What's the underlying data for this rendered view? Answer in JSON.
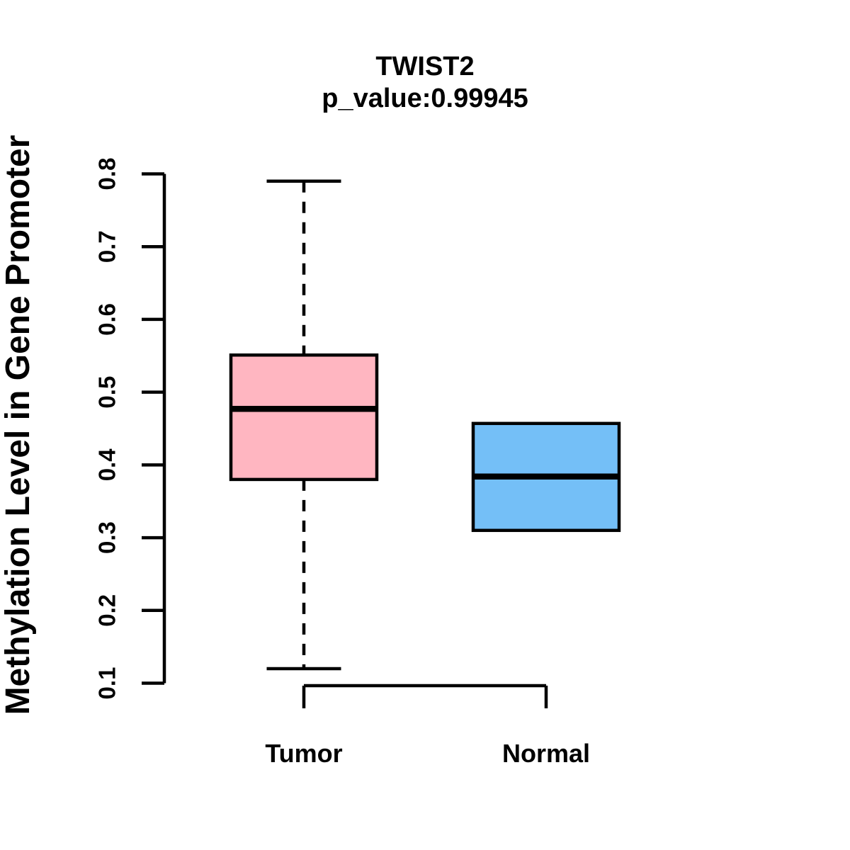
{
  "header": {
    "title": "TWIST2",
    "subtitle": "p_value:0.99945"
  },
  "colors": {
    "tumor_fill": "#FFB6C1",
    "normal_fill": "#74BFF7",
    "line": "#000000",
    "background": "#FFFFFF"
  },
  "chart_data": {
    "type": "boxplot",
    "title": "TWIST2",
    "subtitle": "p_value:0.99945",
    "xlabel": "",
    "ylabel": "Methylation Level in Gene Promoter",
    "categories": [
      "Tumor",
      "Normal"
    ],
    "ylim": [
      0.1,
      0.8
    ],
    "yticks": [
      0.1,
      0.2,
      0.3,
      0.4,
      0.5,
      0.6,
      0.7,
      0.8
    ],
    "ytick_labels": [
      "0.1",
      "0.2",
      "0.3",
      "0.4",
      "0.5",
      "0.6",
      "0.7",
      "0.8"
    ],
    "grid": false,
    "legend": "none",
    "series": [
      {
        "name": "Tumor",
        "color": "#FFB6C1",
        "whisker_low": 0.12,
        "q1": 0.38,
        "median": 0.477,
        "q3": 0.551,
        "whisker_high": 0.79,
        "outliers": []
      },
      {
        "name": "Normal",
        "color": "#74BFF7",
        "whisker_low": 0.31,
        "q1": 0.31,
        "median": 0.384,
        "q3": 0.457,
        "whisker_high": 0.457,
        "outliers": []
      }
    ]
  }
}
